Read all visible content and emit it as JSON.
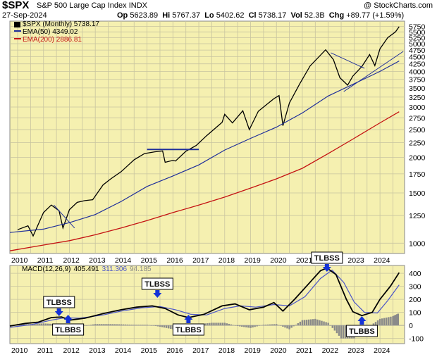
{
  "header": {
    "symbol": "$SPX",
    "description": "S&P 500 Large Cap Index",
    "exchange": "INDX",
    "copyright": "@ StockCharts.com",
    "date": "27-Sep-2024",
    "op_label": "Op",
    "op": "5623.89",
    "hi_label": "Hi",
    "hi": "5767.37",
    "lo_label": "Lo",
    "lo": "5402.62",
    "cl_label": "Cl",
    "cl": "5738.17",
    "vol_label": "Vol",
    "vol": "52.3B",
    "chg_label": "Chg",
    "chg": "+89.77 (+1.59%)"
  },
  "legend": {
    "price": "$SPX (Monthly) 5738.17",
    "ema50": "EMA(50) 4349.02",
    "ema200": "EMA(200) 2886.81",
    "macd_name": "MACD(12,26,9)",
    "macd_val": "405.491",
    "signal_val": "311.306",
    "hist_val": "94.185"
  },
  "annotations": [
    {
      "text": "TLBSS",
      "date": 2011.6,
      "side": "above"
    },
    {
      "text": "TLBBS",
      "date": 2011.95,
      "side": "below"
    },
    {
      "text": "TLBSS",
      "date": 2015.4,
      "side": "above"
    },
    {
      "text": "TLBBS",
      "date": 2016.6,
      "side": "below"
    },
    {
      "text": "TLBSS",
      "date": 2021.95,
      "side": "above"
    },
    {
      "text": "TLBBS",
      "date": 2023.3,
      "side": "below"
    }
  ],
  "colors": {
    "plot_bg": "#f5f0b0",
    "grid": "#c8c4a0",
    "price": "#000000",
    "ema50": "#1f2f9a",
    "ema200": "#c41212",
    "macd": "#000000",
    "signal": "#4b55c8",
    "hist": "#8a8a8a",
    "arrow": "#1432d8",
    "trendline": "#1f2f9a"
  },
  "chart_data": [
    {
      "type": "line",
      "scale": "log",
      "x_ticks": [
        "2010",
        "2011",
        "2012",
        "2013",
        "2014",
        "2015",
        "2016",
        "2017",
        "2018",
        "2019",
        "2020",
        "2021",
        "2022",
        "2023",
        "2024"
      ],
      "y_ticks": [
        1000,
        1250,
        1500,
        1750,
        2000,
        2250,
        2500,
        2750,
        3000,
        3250,
        3500,
        3750,
        4000,
        4250,
        4500,
        4750,
        5000,
        5250,
        5500,
        5750
      ],
      "ylim": [
        920,
        6000
      ],
      "xlim": [
        2009.7,
        2024.95
      ],
      "grid": true,
      "legend_position": "top-left",
      "series": [
        {
          "name": "$SPX (Monthly)",
          "x": [
            2010.0,
            2010.4,
            2010.6,
            2011.0,
            2011.3,
            2011.6,
            2011.75,
            2012.0,
            2012.3,
            2012.6,
            2012.9,
            2013.3,
            2013.6,
            2014.0,
            2014.5,
            2014.9,
            2015.3,
            2015.6,
            2015.7,
            2016.0,
            2016.1,
            2016.5,
            2016.9,
            2017.3,
            2017.9,
            2018.0,
            2018.3,
            2018.7,
            2018.95,
            2019.3,
            2019.9,
            2020.1,
            2020.25,
            2020.5,
            2020.9,
            2021.3,
            2021.9,
            2022.2,
            2022.45,
            2022.75,
            2022.95,
            2023.3,
            2023.6,
            2023.8,
            2024.0,
            2024.3,
            2024.6,
            2024.74
          ],
          "values": [
            1115,
            1150,
            1060,
            1280,
            1360,
            1300,
            1130,
            1310,
            1390,
            1410,
            1420,
            1600,
            1680,
            1780,
            1960,
            2060,
            2090,
            2105,
            1920,
            1950,
            1940,
            2100,
            2200,
            2380,
            2650,
            2830,
            2640,
            2910,
            2500,
            2900,
            3210,
            3290,
            2580,
            3100,
            3620,
            4180,
            4760,
            4400,
            3800,
            3580,
            3850,
            4160,
            4580,
            4190,
            4800,
            5250,
            5500,
            5738
          ]
        },
        {
          "name": "EMA(50)",
          "x": [
            2009.7,
            2011.0,
            2012.0,
            2013.0,
            2014.0,
            2015.0,
            2016.0,
            2017.0,
            2018.0,
            2019.0,
            2020.0,
            2021.0,
            2022.0,
            2023.0,
            2024.0,
            2024.74
          ],
          "values": [
            1090,
            1120,
            1180,
            1260,
            1400,
            1580,
            1720,
            1880,
            2120,
            2330,
            2550,
            2860,
            3280,
            3620,
            4000,
            4349
          ]
        },
        {
          "name": "EMA(200)",
          "x": [
            2009.7,
            2011.0,
            2012.0,
            2013.0,
            2014.0,
            2015.0,
            2016.0,
            2017.0,
            2018.0,
            2019.0,
            2020.0,
            2021.0,
            2022.0,
            2023.0,
            2024.0,
            2024.74
          ],
          "values": [
            940,
            985,
            1020,
            1070,
            1130,
            1200,
            1280,
            1360,
            1450,
            1560,
            1680,
            1830,
            2060,
            2330,
            2640,
            2887
          ]
        },
        {
          "name": "Trend 2011",
          "x": [
            2011.4,
            2012.2
          ],
          "values": [
            1360,
            1130
          ]
        },
        {
          "name": "Resistance 2015",
          "x": [
            2015.0,
            2017.0
          ],
          "values": [
            2130,
            2130
          ]
        },
        {
          "name": "Trend 2022",
          "x": [
            2022.1,
            2023.4
          ],
          "values": [
            4650,
            4100
          ]
        },
        {
          "name": "Trend 2022 rising",
          "x": [
            2022.6,
            2024.9
          ],
          "values": [
            3400,
            4700
          ]
        }
      ]
    },
    {
      "type": "line",
      "title": "MACD(12,26,9)",
      "x_ticks": [
        "2010",
        "2011",
        "2012",
        "2013",
        "2014",
        "2015",
        "2016",
        "2017",
        "2018",
        "2019",
        "2020",
        "2021",
        "2022",
        "2023",
        "2024"
      ],
      "y_ticks": [
        -100,
        0,
        100,
        200,
        300,
        400
      ],
      "ylim": [
        -140,
        460
      ],
      "xlim": [
        2009.7,
        2024.95
      ],
      "grid": true,
      "series": [
        {
          "name": "MACD",
          "x": [
            2009.7,
            2010.3,
            2010.8,
            2011.3,
            2011.7,
            2012.0,
            2012.6,
            2013.3,
            2014.0,
            2014.6,
            2015.2,
            2015.7,
            2016.2,
            2016.6,
            2017.2,
            2017.9,
            2018.4,
            2018.95,
            2019.5,
            2019.9,
            2020.25,
            2020.7,
            2021.2,
            2021.7,
            2021.95,
            2022.3,
            2022.7,
            2022.95,
            2023.3,
            2023.7,
            2024.0,
            2024.4,
            2024.74
          ],
          "values": [
            -5,
            15,
            25,
            60,
            65,
            40,
            55,
            90,
            120,
            140,
            150,
            130,
            80,
            60,
            85,
            150,
            165,
            120,
            140,
            175,
            110,
            200,
            310,
            420,
            440,
            390,
            200,
            105,
            75,
            100,
            200,
            300,
            405
          ]
        },
        {
          "name": "Signal",
          "x": [
            2009.7,
            2010.5,
            2011.3,
            2011.8,
            2012.4,
            2013.3,
            2014.0,
            2014.8,
            2015.5,
            2016.1,
            2016.7,
            2017.3,
            2018.0,
            2018.6,
            2019.2,
            2019.9,
            2020.5,
            2021.1,
            2021.7,
            2022.15,
            2022.6,
            2023.0,
            2023.4,
            2023.9,
            2024.3,
            2024.74
          ],
          "values": [
            -15,
            5,
            40,
            58,
            55,
            80,
            110,
            135,
            145,
            120,
            85,
            80,
            130,
            150,
            140,
            160,
            150,
            220,
            360,
            425,
            330,
            180,
            100,
            95,
            190,
            311
          ]
        },
        {
          "name": "Histogram",
          "x": [
            2010.0,
            2010.5,
            2011.0,
            2011.5,
            2012.0,
            2012.5,
            2013.0,
            2013.5,
            2014.0,
            2014.5,
            2015.0,
            2015.5,
            2016.0,
            2016.5,
            2017.0,
            2017.5,
            2018.0,
            2018.5,
            2019.0,
            2019.5,
            2020.0,
            2020.5,
            2021.0,
            2021.5,
            2022.0,
            2022.5,
            2023.0,
            2023.5,
            2024.0,
            2024.5,
            2024.74
          ],
          "values": [
            10,
            10,
            15,
            10,
            -15,
            -5,
            10,
            10,
            8,
            5,
            5,
            -10,
            -30,
            -20,
            10,
            20,
            20,
            -5,
            -20,
            5,
            10,
            -30,
            40,
            50,
            20,
            -100,
            -100,
            -20,
            50,
            70,
            94
          ]
        }
      ]
    }
  ]
}
